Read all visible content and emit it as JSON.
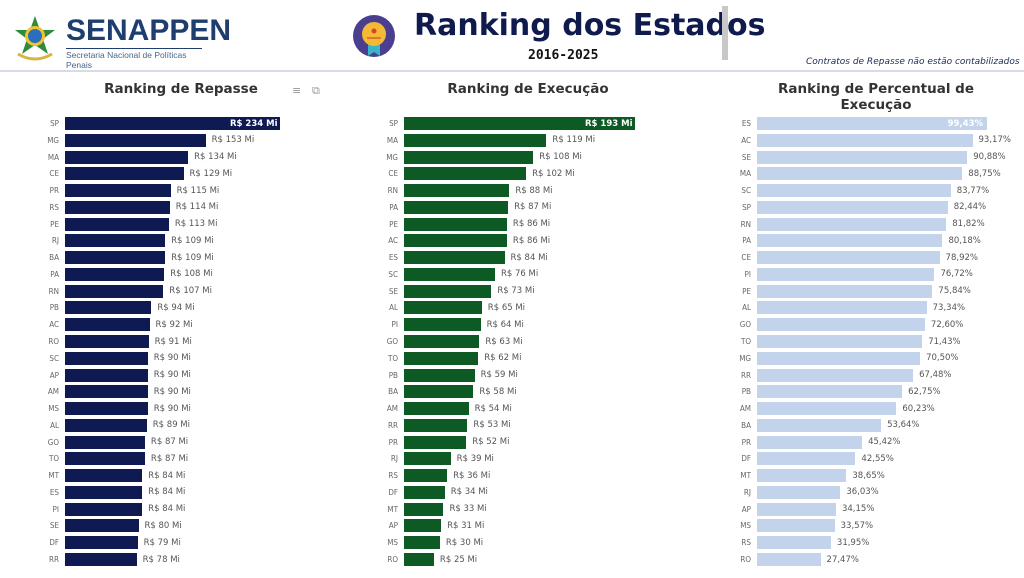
{
  "header": {
    "brand": "SENAPPEN",
    "brand_subtitle": "Secretaria Nacional de Políticas Penais",
    "title": "Ranking dos Estados",
    "period": "2016-2025",
    "note": "Contratos de Repasse não estão contabilizados"
  },
  "icons": [
    "brazil-coat-of-arms",
    "medal-badge",
    "filter-icon",
    "focus-mode-icon"
  ],
  "chart_data": [
    {
      "type": "bar",
      "orientation": "horizontal",
      "title": "Ranking de Repasse",
      "color": "#0f1a52",
      "categories": [
        "SP",
        "MG",
        "MA",
        "CE",
        "PR",
        "RS",
        "PE",
        "RJ",
        "BA",
        "PA",
        "RN",
        "PB",
        "AC",
        "RO",
        "SC",
        "AP",
        "AM",
        "MS",
        "AL",
        "GO",
        "TO",
        "MT",
        "ES",
        "PI",
        "SE",
        "DF",
        "RR"
      ],
      "values": [
        234,
        153,
        134,
        129,
        115,
        114,
        113,
        109,
        109,
        108,
        107,
        94,
        92,
        91,
        90,
        90,
        90,
        90,
        89,
        87,
        87,
        84,
        84,
        84,
        80,
        79,
        78
      ],
      "labels": [
        "R$ 234 Mi",
        "R$ 153 Mi",
        "R$ 134 Mi",
        "R$ 129 Mi",
        "R$ 115 Mi",
        "R$ 114 Mi",
        "R$ 113 Mi",
        "R$ 109 Mi",
        "R$ 109 Mi",
        "R$ 108 Mi",
        "R$ 107 Mi",
        "R$ 94 Mi",
        "R$ 92 Mi",
        "R$ 91 Mi",
        "R$ 90 Mi",
        "R$ 90 Mi",
        "R$ 90 Mi",
        "R$ 90 Mi",
        "R$ 89 Mi",
        "R$ 87 Mi",
        "R$ 87 Mi",
        "R$ 84 Mi",
        "R$ 84 Mi",
        "R$ 84 Mi",
        "R$ 80 Mi",
        "R$ 79 Mi",
        "R$ 78 Mi"
      ],
      "xlim": [
        0,
        234
      ]
    },
    {
      "type": "bar",
      "orientation": "horizontal",
      "title": "Ranking de Execução",
      "color": "#0d5a24",
      "categories": [
        "SP",
        "MA",
        "MG",
        "CE",
        "RN",
        "PA",
        "PE",
        "AC",
        "ES",
        "SC",
        "SE",
        "AL",
        "PI",
        "GO",
        "TO",
        "PB",
        "BA",
        "AM",
        "RR",
        "PR",
        "RJ",
        "RS",
        "DF",
        "MT",
        "AP",
        "MS",
        "RO"
      ],
      "values": [
        193,
        119,
        108,
        102,
        88,
        87,
        86,
        86,
        84,
        76,
        73,
        65,
        64,
        63,
        62,
        59,
        58,
        54,
        53,
        52,
        39,
        36,
        34,
        33,
        31,
        30,
        25
      ],
      "labels": [
        "R$ 193 Mi",
        "R$ 119 Mi",
        "R$ 108 Mi",
        "R$ 102 Mi",
        "R$ 88 Mi",
        "R$ 87 Mi",
        "R$ 86 Mi",
        "R$ 86 Mi",
        "R$ 84 Mi",
        "R$ 76 Mi",
        "R$ 73 Mi",
        "R$ 65 Mi",
        "R$ 64 Mi",
        "R$ 63 Mi",
        "R$ 62 Mi",
        "R$ 59 Mi",
        "R$ 58 Mi",
        "R$ 54 Mi",
        "R$ 53 Mi",
        "R$ 52 Mi",
        "R$ 39 Mi",
        "R$ 36 Mi",
        "R$ 34 Mi",
        "R$ 33 Mi",
        "R$ 31 Mi",
        "R$ 30 Mi",
        "R$ 25 Mi"
      ],
      "xlim": [
        0,
        193
      ]
    },
    {
      "type": "bar",
      "orientation": "horizontal",
      "title": "Ranking de Percentual de Execução",
      "color": "#c3d3eb",
      "categories": [
        "ES",
        "AC",
        "SE",
        "MA",
        "SC",
        "SP",
        "RN",
        "PA",
        "CE",
        "PI",
        "PE",
        "AL",
        "GO",
        "TO",
        "MG",
        "RR",
        "PB",
        "AM",
        "BA",
        "PR",
        "DF",
        "MT",
        "RJ",
        "AP",
        "MS",
        "RS",
        "RO"
      ],
      "values": [
        99.43,
        93.17,
        90.88,
        88.75,
        83.77,
        82.44,
        81.82,
        80.18,
        78.92,
        76.72,
        75.84,
        73.34,
        72.6,
        71.43,
        70.5,
        67.48,
        62.75,
        60.23,
        53.64,
        45.42,
        42.55,
        38.65,
        36.03,
        34.15,
        33.57,
        31.95,
        27.47
      ],
      "labels": [
        "99,43%",
        "93,17%",
        "90,88%",
        "88,75%",
        "83,77%",
        "82,44%",
        "81,82%",
        "80,18%",
        "78,92%",
        "76,72%",
        "75,84%",
        "73,34%",
        "72,60%",
        "71,43%",
        "70,50%",
        "67,48%",
        "62,75%",
        "60,23%",
        "53,64%",
        "45,42%",
        "42,55%",
        "38,65%",
        "36,03%",
        "34,15%",
        "33,57%",
        "31,95%",
        "27,47%"
      ],
      "xlim": [
        0,
        99.43
      ]
    }
  ]
}
